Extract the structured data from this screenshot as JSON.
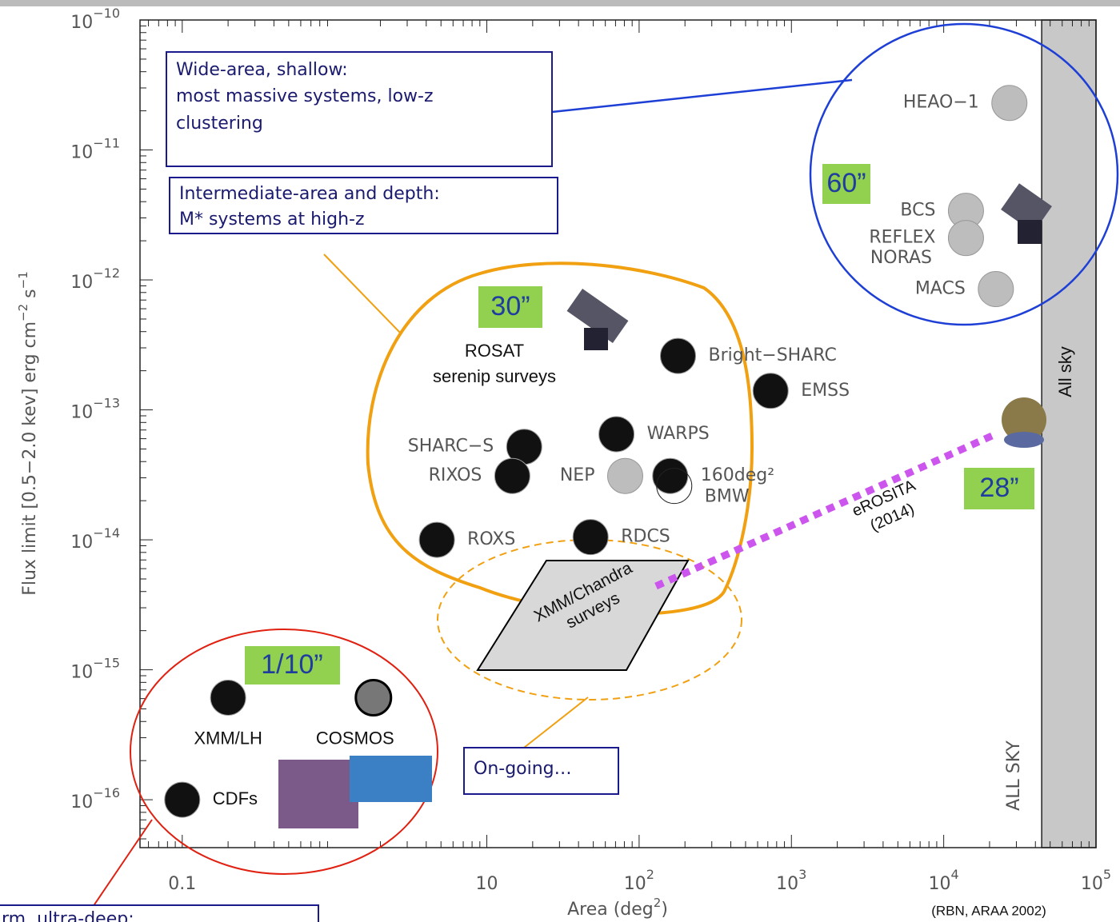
{
  "chart_data": {
    "type": "scatter",
    "xscale": "log",
    "yscale": "log",
    "xlim": [
      0.0528,
      100000
    ],
    "ylim": [
      4.28e-17,
      1e-10
    ],
    "x_label": [
      "Area (deg",
      "2",
      ")"
    ],
    "y_label": [
      "Flux limit [0.5−2.0 kev] erg cm",
      "−2",
      " s",
      "−1"
    ],
    "xticks": [
      0.1,
      10,
      {
        "value": 100,
        "label": "10",
        "exponent": "2"
      },
      {
        "value": 1000,
        "label": "10",
        "exponent": "3"
      },
      {
        "value": 10000,
        "label": "10",
        "exponent": "4"
      },
      {
        "value": 100000,
        "label": "10",
        "exponent": "5"
      }
    ],
    "yticks": [
      {
        "value": 1e-10,
        "label": "10",
        "exponent": "−10"
      },
      {
        "value": 1e-11,
        "label": "10",
        "exponent": "−11"
      },
      {
        "value": 1e-12,
        "label": "10",
        "exponent": "−12"
      },
      {
        "value": 1e-13,
        "label": "10",
        "exponent": "−13"
      },
      {
        "value": 1e-14,
        "label": "10",
        "exponent": "−14"
      },
      {
        "value": 1e-15,
        "label": "10",
        "exponent": "−15"
      },
      {
        "value": 1e-16,
        "label": "10",
        "exponent": "−16"
      }
    ],
    "points": [
      {
        "name": "HEAO−1",
        "x": 27000,
        "y": 2.3e-11,
        "color": "#bdbdbd"
      },
      {
        "name": "BCS",
        "x": 14000,
        "y": 3.4e-12,
        "color": "#bdbdbd"
      },
      {
        "name": "REFLEX",
        "x": 14000,
        "y": 2.1e-12,
        "color": "#bdbdbd"
      },
      {
        "name": "MACS",
        "x": 22000,
        "y": 8.5e-13,
        "color": "#bdbdbd"
      },
      {
        "name": "Bright−SHARC",
        "x": 180,
        "y": 2.6e-13,
        "color": "#111111"
      },
      {
        "name": "EMSS",
        "x": 730,
        "y": 1.4e-13,
        "color": "#111111"
      },
      {
        "name": "WARPS",
        "x": 71,
        "y": 6.5e-14,
        "color": "#111111"
      },
      {
        "name": "SHARC−S",
        "x": 17.6,
        "y": 5.2e-14,
        "color": "#111111"
      },
      {
        "name": "RIXOS",
        "x": 14.7,
        "y": 3.1e-14,
        "color": "#111111"
      },
      {
        "name": "NEP",
        "x": 81,
        "y": 3.1e-14,
        "color": "#bdbdbd"
      },
      {
        "name": "160deg²",
        "x": 160,
        "y": 3.1e-14,
        "color": "#111111"
      },
      {
        "name": "BMW",
        "x": 170,
        "y": 2.6e-14,
        "color": "none"
      },
      {
        "name": "ROXS",
        "x": 4.7,
        "y": 1e-14,
        "color": "#111111"
      },
      {
        "name": "RDCS",
        "x": 48,
        "y": 1.05e-14,
        "color": "#111111"
      },
      {
        "name": "XMM/LH",
        "x": 0.2,
        "y": 6.1e-16,
        "color": "#111111"
      },
      {
        "name": "COSMOS",
        "x": 1.8,
        "y": 6.1e-16,
        "color": "#777777"
      },
      {
        "name": "CDFs",
        "x": 0.1,
        "y": 1e-16,
        "color": "#111111"
      }
    ],
    "band": {
      "xlim": [
        44000,
        100000
      ],
      "label": "ALL SKY",
      "color": "#c8c8c8"
    }
  },
  "annotations": {
    "wide_box": [
      "Wide-area, shallow:",
      "most massive systems, low-z",
      "clustering"
    ],
    "intermediate_box": [
      "Intermediate-area and depth:",
      "M* systems at high-z"
    ],
    "ongoing_box": "On-going…",
    "deep_box": "rm, ultra-deep:",
    "resolutions": [
      "60”",
      "30”",
      "28”",
      "1/10”"
    ],
    "rosat": [
      "ROSAT",
      "serenip surveys"
    ],
    "noras": "NORAS",
    "erosita": [
      "eROSITA",
      "(2014)"
    ],
    "xmm_chandra": [
      "XMM/Chandra",
      "surveys"
    ],
    "all_sky": "All sky",
    "credit": "(RBN, ARAA 2002)"
  }
}
